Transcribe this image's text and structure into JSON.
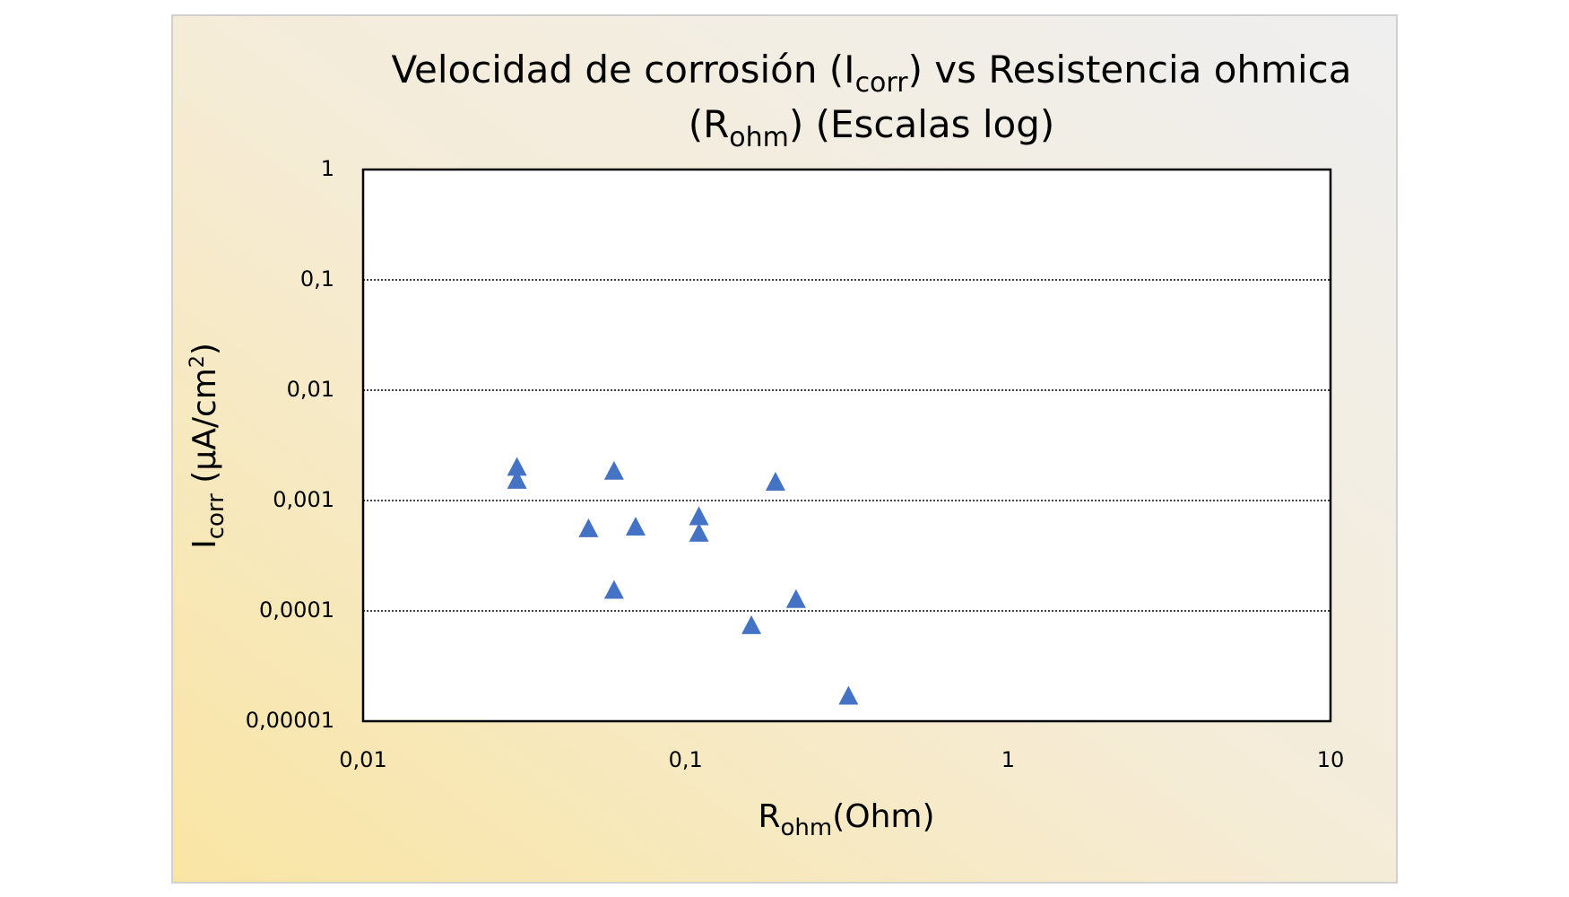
{
  "chart_data": {
    "type": "scatter",
    "title": [
      "Velocidad de corrosión (I",
      "corr",
      ") vs Resistencia ohmica",
      "(R",
      "ohm",
      ") (Escalas log)"
    ],
    "x_label": [
      "R",
      "ohm",
      "(Ohm)"
    ],
    "y_label": [
      "I",
      "corr",
      " (µA/cm",
      "2",
      ")"
    ],
    "x_log": true,
    "y_log": true,
    "grid": true,
    "xlim": [
      0.01,
      10
    ],
    "ylim": [
      1e-05,
      1
    ],
    "xticks": [
      {
        "value": 0.01,
        "label": "0,01"
      },
      {
        "value": 0.1,
        "label": "0,1"
      },
      1,
      10
    ],
    "yticks": [
      {
        "value": 1e-05,
        "label": "0,00001"
      },
      {
        "value": 0.0001,
        "label": "0,0001"
      },
      {
        "value": 0.001,
        "label": "0,001"
      },
      {
        "value": 0.01,
        "label": "0,01"
      },
      {
        "value": 0.1,
        "label": "0,1"
      },
      1
    ],
    "series": [
      {
        "color": "#4472c4",
        "x": [
          0.03,
          0.03,
          0.06,
          0.05,
          0.07,
          0.11,
          0.11,
          0.06,
          0.19,
          0.22,
          0.16,
          0.32
        ],
        "values": [
          0.00202,
          0.00154,
          0.00186,
          0.00056,
          0.00058,
          0.00072,
          0.00051,
          0.000155,
          0.00148,
          0.000128,
          7.42e-05,
          1.7e-05
        ]
      }
    ]
  }
}
